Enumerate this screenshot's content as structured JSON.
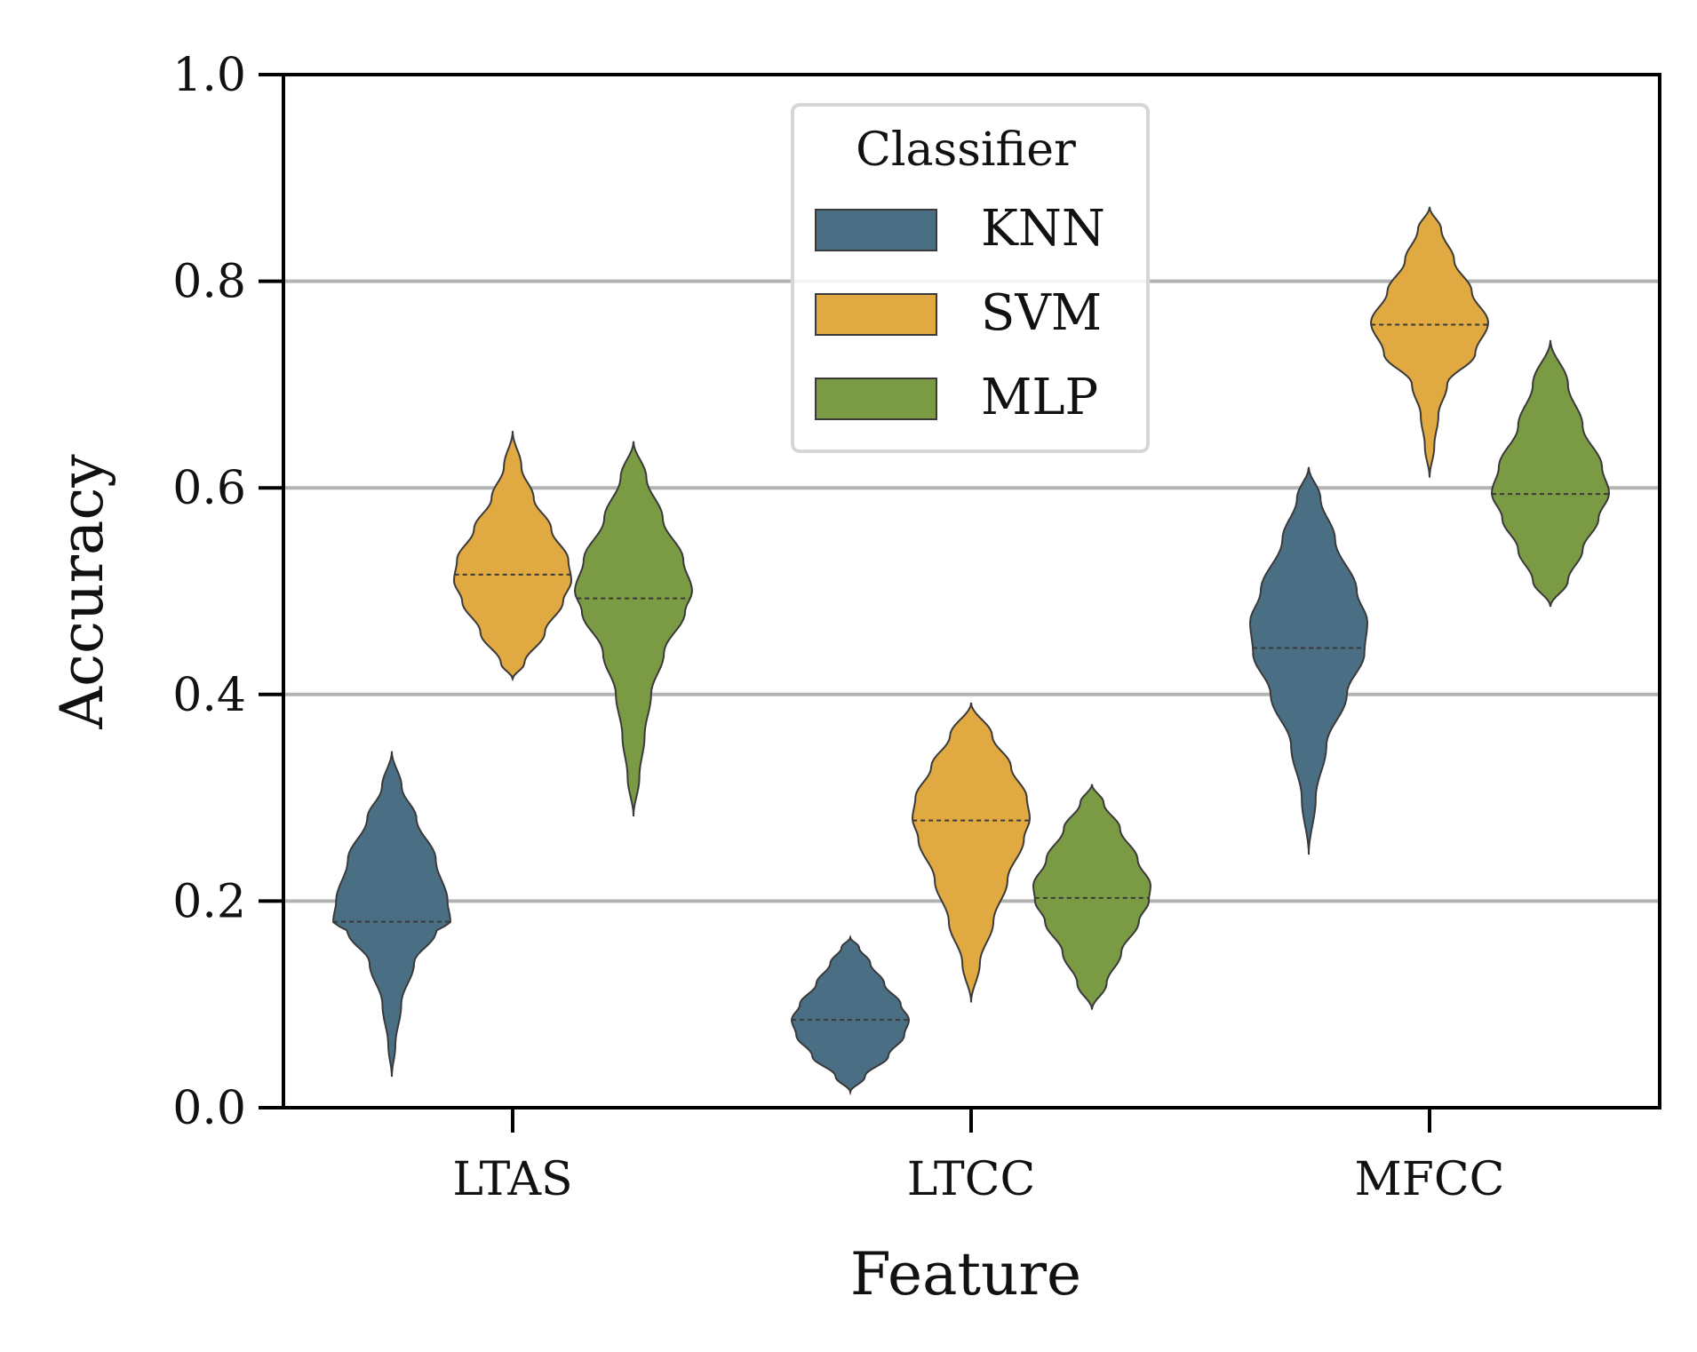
{
  "chart_data": {
    "type": "violin",
    "xlabel": "Feature",
    "ylabel": "Accuracy",
    "categories": [
      "LTAS",
      "LTCC",
      "MFCC"
    ],
    "ylim": [
      0.0,
      1.0
    ],
    "yticks": [
      "0.0",
      "0.2",
      "0.4",
      "0.6",
      "0.8",
      "1.0"
    ],
    "ytick_values": [
      0.0,
      0.2,
      0.4,
      0.6,
      0.8,
      1.0
    ],
    "grid": "horizontal at 0.2, 0.4, 0.6, 0.8",
    "legend": {
      "title": "Classifier",
      "placement": "top-center"
    },
    "series": [
      {
        "name": "KNN",
        "color": "#4a6f85",
        "violins": [
          {
            "category": "LTAS",
            "min": 0.03,
            "max": 0.345,
            "median": 0.18,
            "profile": [
              [
                0.03,
                0.0
              ],
              [
                0.06,
                0.06
              ],
              [
                0.1,
                0.16
              ],
              [
                0.14,
                0.38
              ],
              [
                0.17,
                0.75
              ],
              [
                0.18,
                1.0
              ],
              [
                0.2,
                0.95
              ],
              [
                0.24,
                0.75
              ],
              [
                0.28,
                0.42
              ],
              [
                0.31,
                0.17
              ],
              [
                0.345,
                0.0
              ]
            ]
          },
          {
            "category": "LTCC",
            "min": 0.015,
            "max": 0.165,
            "median": 0.085,
            "profile": [
              [
                0.015,
                0.0
              ],
              [
                0.03,
                0.25
              ],
              [
                0.05,
                0.65
              ],
              [
                0.07,
                0.92
              ],
              [
                0.085,
                1.0
              ],
              [
                0.1,
                0.86
              ],
              [
                0.12,
                0.58
              ],
              [
                0.14,
                0.34
              ],
              [
                0.155,
                0.15
              ],
              [
                0.165,
                0.0
              ]
            ]
          },
          {
            "category": "MFCC",
            "min": 0.245,
            "max": 0.62,
            "median": 0.445,
            "profile": [
              [
                0.245,
                0.0
              ],
              [
                0.3,
                0.12
              ],
              [
                0.35,
                0.3
              ],
              [
                0.4,
                0.65
              ],
              [
                0.44,
                0.95
              ],
              [
                0.47,
                1.0
              ],
              [
                0.5,
                0.82
              ],
              [
                0.55,
                0.45
              ],
              [
                0.59,
                0.2
              ],
              [
                0.62,
                0.0
              ]
            ]
          }
        ]
      },
      {
        "name": "SVM",
        "color": "#e0a942",
        "violins": [
          {
            "category": "LTAS",
            "min": 0.415,
            "max": 0.655,
            "median": 0.516,
            "profile": [
              [
                0.415,
                0.0
              ],
              [
                0.43,
                0.2
              ],
              [
                0.46,
                0.55
              ],
              [
                0.49,
                0.86
              ],
              [
                0.51,
                1.0
              ],
              [
                0.53,
                0.95
              ],
              [
                0.56,
                0.66
              ],
              [
                0.59,
                0.36
              ],
              [
                0.62,
                0.15
              ],
              [
                0.655,
                0.0
              ]
            ]
          },
          {
            "category": "LTCC",
            "min": 0.102,
            "max": 0.392,
            "median": 0.278,
            "profile": [
              [
                0.102,
                0.0
              ],
              [
                0.14,
                0.15
              ],
              [
                0.18,
                0.38
              ],
              [
                0.22,
                0.62
              ],
              [
                0.26,
                0.9
              ],
              [
                0.28,
                1.0
              ],
              [
                0.3,
                0.95
              ],
              [
                0.33,
                0.68
              ],
              [
                0.36,
                0.36
              ],
              [
                0.392,
                0.0
              ]
            ]
          },
          {
            "category": "MFCC",
            "min": 0.61,
            "max": 0.872,
            "median": 0.758,
            "profile": [
              [
                0.61,
                0.0
              ],
              [
                0.64,
                0.08
              ],
              [
                0.67,
                0.15
              ],
              [
                0.7,
                0.3
              ],
              [
                0.73,
                0.78
              ],
              [
                0.76,
                1.0
              ],
              [
                0.79,
                0.72
              ],
              [
                0.82,
                0.42
              ],
              [
                0.85,
                0.2
              ],
              [
                0.872,
                0.0
              ]
            ]
          }
        ]
      },
      {
        "name": "MLP",
        "color": "#7a9a43",
        "violins": [
          {
            "category": "LTAS",
            "min": 0.282,
            "max": 0.645,
            "median": 0.493,
            "profile": [
              [
                0.282,
                0.0
              ],
              [
                0.32,
                0.1
              ],
              [
                0.36,
                0.19
              ],
              [
                0.4,
                0.3
              ],
              [
                0.44,
                0.52
              ],
              [
                0.48,
                0.88
              ],
              [
                0.5,
                1.0
              ],
              [
                0.53,
                0.85
              ],
              [
                0.57,
                0.5
              ],
              [
                0.61,
                0.22
              ],
              [
                0.645,
                0.0
              ]
            ]
          },
          {
            "category": "LTCC",
            "min": 0.095,
            "max": 0.313,
            "median": 0.203,
            "profile": [
              [
                0.095,
                0.0
              ],
              [
                0.12,
                0.25
              ],
              [
                0.15,
                0.5
              ],
              [
                0.18,
                0.8
              ],
              [
                0.2,
                0.97
              ],
              [
                0.215,
                1.0
              ],
              [
                0.24,
                0.78
              ],
              [
                0.27,
                0.48
              ],
              [
                0.295,
                0.2
              ],
              [
                0.313,
                0.0
              ]
            ]
          },
          {
            "category": "MFCC",
            "min": 0.485,
            "max": 0.743,
            "median": 0.594,
            "profile": [
              [
                0.485,
                0.0
              ],
              [
                0.51,
                0.3
              ],
              [
                0.54,
                0.55
              ],
              [
                0.57,
                0.82
              ],
              [
                0.595,
                1.0
              ],
              [
                0.62,
                0.88
              ],
              [
                0.66,
                0.55
              ],
              [
                0.7,
                0.3
              ],
              [
                0.743,
                0.0
              ]
            ]
          }
        ]
      }
    ]
  }
}
